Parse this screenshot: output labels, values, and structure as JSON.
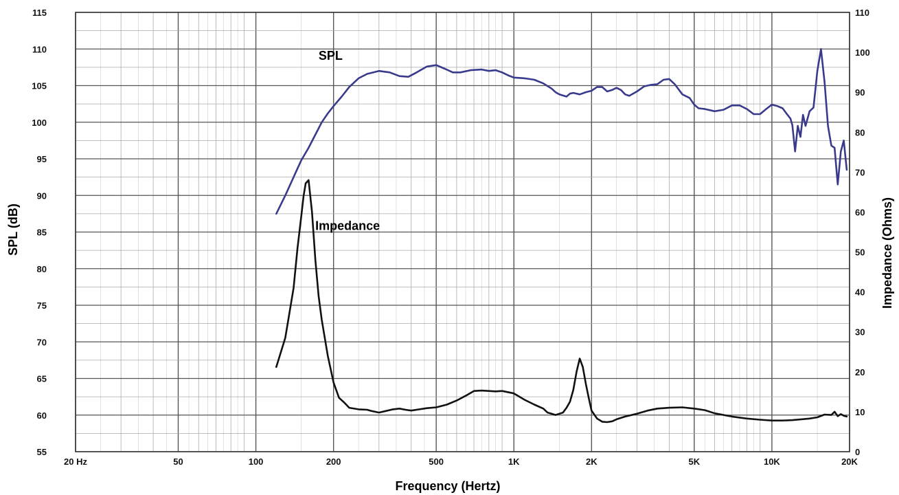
{
  "chart_data": {
    "type": "line",
    "xlabel": "Frequency (Hertz)",
    "ylabel": "SPL (dB)",
    "y2label": "Impedance (Ohms)",
    "xscale": "log",
    "xlim": [
      20,
      20000
    ],
    "ylim": [
      55,
      115
    ],
    "y2lim": [
      0,
      110
    ],
    "grid": true,
    "x_ticks": [
      {
        "value": 20,
        "label": "20  Hz"
      },
      {
        "value": 50,
        "label": "50"
      },
      {
        "value": 100,
        "label": "100"
      },
      {
        "value": 200,
        "label": "200"
      },
      {
        "value": 500,
        "label": "500"
      },
      {
        "value": 1000,
        "label": "1K"
      },
      {
        "value": 2000,
        "label": "2K"
      },
      {
        "value": 5000,
        "label": "5K"
      },
      {
        "value": 10000,
        "label": "10K"
      },
      {
        "value": 20000,
        "label": "20K"
      }
    ],
    "y_ticks": [
      55,
      60,
      65,
      70,
      75,
      80,
      85,
      90,
      95,
      100,
      105,
      110,
      115
    ],
    "y2_ticks": [
      0,
      10,
      20,
      30,
      40,
      50,
      60,
      70,
      80,
      90,
      100,
      110
    ],
    "series": [
      {
        "name": "SPL",
        "axis": "left",
        "color": "#3a3a8c",
        "x": [
          120,
          130,
          140,
          150,
          160,
          170,
          180,
          190,
          200,
          215,
          230,
          250,
          270,
          300,
          330,
          360,
          390,
          420,
          460,
          500,
          540,
          580,
          620,
          680,
          750,
          800,
          850,
          900,
          950,
          1000,
          1100,
          1200,
          1300,
          1400,
          1450,
          1500,
          1600,
          1650,
          1700,
          1800,
          1900,
          2000,
          2100,
          2200,
          2300,
          2400,
          2500,
          2600,
          2700,
          2800,
          3000,
          3200,
          3400,
          3600,
          3800,
          4000,
          4200,
          4500,
          4800,
          5000,
          5200,
          5500,
          6000,
          6500,
          7000,
          7500,
          8000,
          8500,
          9000,
          9500,
          10000,
          10500,
          11000,
          11500,
          11800,
          12000,
          12300,
          12600,
          12900,
          13200,
          13500,
          14000,
          14500,
          15000,
          15500,
          16000,
          16500,
          17000,
          17500,
          18000,
          18500,
          19000,
          19500
        ],
        "values": [
          87.5,
          90,
          92.5,
          94.8,
          96.5,
          98.3,
          100,
          101.2,
          102.2,
          103.5,
          104.8,
          106,
          106.6,
          107,
          106.8,
          106.3,
          106.2,
          106.8,
          107.6,
          107.8,
          107.3,
          106.8,
          106.8,
          107.1,
          107.2,
          107,
          107.1,
          106.8,
          106.4,
          106.1,
          106,
          105.8,
          105.3,
          104.6,
          104.1,
          103.8,
          103.5,
          103.9,
          104,
          103.8,
          104.1,
          104.3,
          104.8,
          104.8,
          104.2,
          104.4,
          104.7,
          104.4,
          103.8,
          103.6,
          104.2,
          104.9,
          105.1,
          105.2,
          105.8,
          105.9,
          105.2,
          103.8,
          103.3,
          102.4,
          101.9,
          101.8,
          101.5,
          101.7,
          102.3,
          102.3,
          101.8,
          101.1,
          101.1,
          101.8,
          102.4,
          102.2,
          101.9,
          101,
          100.5,
          99.6,
          96,
          99.5,
          98,
          101,
          99.5,
          101.5,
          102,
          107,
          110,
          105.5,
          99.5,
          96.8,
          96.5,
          91.5,
          96,
          97.5,
          93.5
        ]
      },
      {
        "name": "Impedance",
        "axis": "right",
        "color": "#111111",
        "x": [
          120,
          130,
          140,
          145,
          150,
          153,
          156,
          160,
          165,
          170,
          175,
          180,
          190,
          200,
          210,
          220,
          230,
          250,
          270,
          280,
          300,
          320,
          340,
          360,
          380,
          400,
          430,
          460,
          500,
          550,
          600,
          650,
          700,
          750,
          800,
          850,
          900,
          1000,
          1100,
          1200,
          1300,
          1350,
          1400,
          1450,
          1500,
          1550,
          1600,
          1650,
          1700,
          1750,
          1800,
          1850,
          1900,
          1950,
          2000,
          2100,
          2200,
          2300,
          2400,
          2500,
          2700,
          3000,
          3300,
          3600,
          4000,
          4500,
          5000,
          5500,
          6000,
          7000,
          8000,
          9000,
          10000,
          11000,
          12000,
          13000,
          14000,
          15000,
          16000,
          17000,
          17500,
          18000,
          18500,
          19000,
          19500
        ],
        "values": [
          21.2,
          28.5,
          41,
          51,
          59,
          64,
          67.2,
          68,
          60,
          48,
          39,
          33,
          24,
          17.3,
          13.5,
          12.3,
          11,
          10.6,
          10.5,
          10.2,
          9.8,
          10.2,
          10.6,
          10.8,
          10.5,
          10.3,
          10.6,
          10.9,
          11.1,
          11.8,
          12.8,
          14,
          15.2,
          15.3,
          15.2,
          15.1,
          15.2,
          14.6,
          13,
          11.8,
          10.8,
          9.8,
          9.5,
          9.2,
          9.5,
          9.8,
          11,
          12.5,
          15.5,
          20,
          23.3,
          21.2,
          17,
          13.5,
          10.3,
          8.3,
          7.5,
          7.4,
          7.6,
          8.1,
          8.8,
          9.5,
          10.3,
          10.8,
          11,
          11.1,
          10.8,
          10.4,
          9.6,
          8.8,
          8.3,
          8,
          7.8,
          7.8,
          7.9,
          8.1,
          8.3,
          8.6,
          9.3,
          9.2,
          10,
          8.9,
          9.4,
          9,
          8.8
        ]
      }
    ],
    "annotations": [
      {
        "text": "SPL",
        "x": 175,
        "y": 108.5,
        "axis": "left"
      },
      {
        "text": "Impedance",
        "x": 170,
        "y": 55.5,
        "axis": "right"
      }
    ]
  }
}
